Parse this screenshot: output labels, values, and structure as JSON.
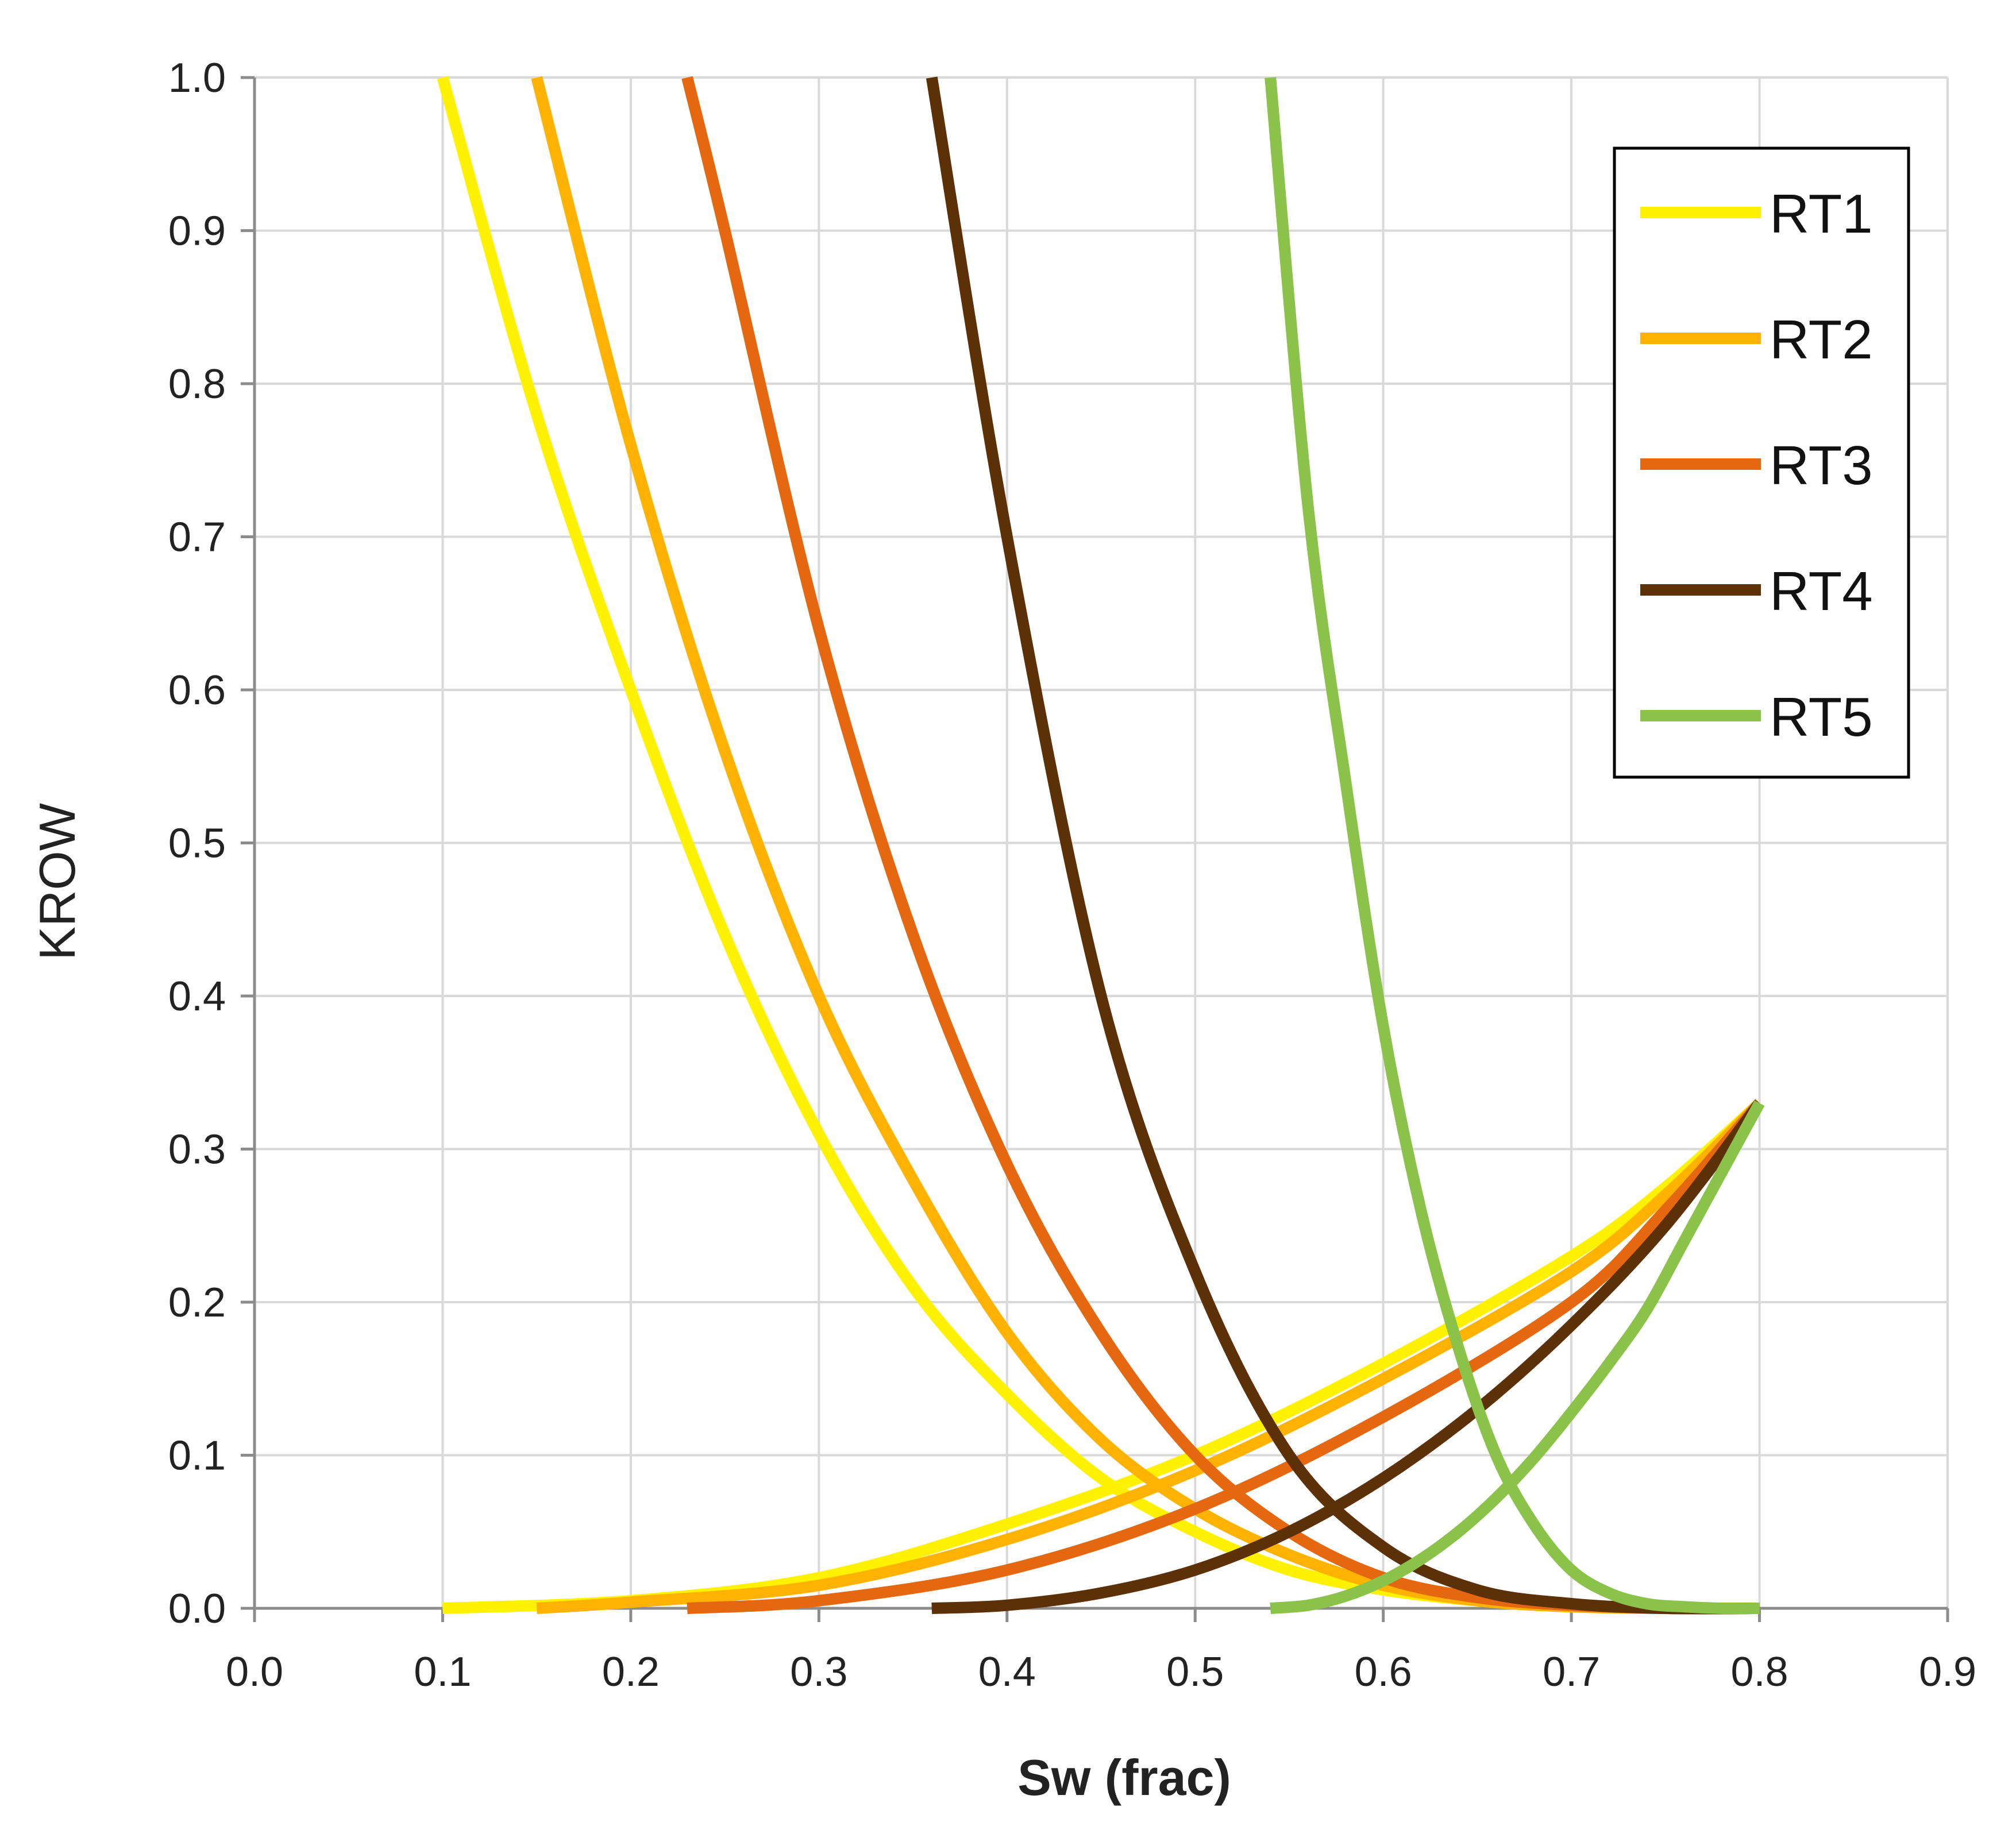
{
  "chart_data": {
    "type": "line",
    "title": "",
    "xlabel": "Sw (frac)",
    "ylabel": "KROW",
    "xlim": [
      0.0,
      0.9
    ],
    "ylim": [
      0.0,
      1.0
    ],
    "xticks": [
      "0.0",
      "0.1",
      "0.2",
      "0.3",
      "0.4",
      "0.5",
      "0.6",
      "0.7",
      "0.8",
      "0.9"
    ],
    "yticks": [
      "0.0",
      "0.1",
      "0.2",
      "0.3",
      "0.4",
      "0.5",
      "0.6",
      "0.7",
      "0.8",
      "0.9",
      "1.0"
    ],
    "grid": true,
    "legend_position": "top-right",
    "series": [
      {
        "name": "RT1",
        "color": "#FFF200",
        "krow": {
          "x": [
            0.1,
            0.15,
            0.2,
            0.25,
            0.3,
            0.35,
            0.4,
            0.45,
            0.5,
            0.55,
            0.6,
            0.65,
            0.7,
            0.75,
            0.8
          ],
          "y": [
            1.0,
            0.78,
            0.6,
            0.44,
            0.31,
            0.21,
            0.14,
            0.085,
            0.05,
            0.025,
            0.012,
            0.005,
            0.001,
            0.0,
            0.0
          ]
        },
        "krw": {
          "x": [
            0.1,
            0.2,
            0.3,
            0.4,
            0.5,
            0.6,
            0.7,
            0.75,
            0.8
          ],
          "y": [
            0.0,
            0.005,
            0.02,
            0.055,
            0.1,
            0.16,
            0.23,
            0.275,
            0.33
          ]
        }
      },
      {
        "name": "RT2",
        "color": "#FFB300",
        "krow": {
          "x": [
            0.15,
            0.2,
            0.25,
            0.3,
            0.35,
            0.4,
            0.45,
            0.5,
            0.55,
            0.6,
            0.65,
            0.7,
            0.75,
            0.8
          ],
          "y": [
            1.0,
            0.76,
            0.56,
            0.4,
            0.28,
            0.18,
            0.11,
            0.065,
            0.035,
            0.015,
            0.005,
            0.001,
            0.0,
            0.0
          ]
        },
        "krw": {
          "x": [
            0.15,
            0.2,
            0.3,
            0.4,
            0.5,
            0.6,
            0.7,
            0.75,
            0.8
          ],
          "y": [
            0.0,
            0.004,
            0.015,
            0.045,
            0.09,
            0.15,
            0.22,
            0.27,
            0.33
          ]
        }
      },
      {
        "name": "RT3",
        "color": "#E5670F",
        "krow": {
          "x": [
            0.23,
            0.25,
            0.3,
            0.35,
            0.4,
            0.45,
            0.5,
            0.55,
            0.6,
            0.65,
            0.7,
            0.75,
            0.8
          ],
          "y": [
            1.0,
            0.9,
            0.64,
            0.44,
            0.29,
            0.18,
            0.1,
            0.05,
            0.02,
            0.007,
            0.002,
            0.0,
            0.0
          ]
        },
        "krw": {
          "x": [
            0.23,
            0.3,
            0.4,
            0.5,
            0.6,
            0.7,
            0.75,
            0.8
          ],
          "y": [
            0.0,
            0.005,
            0.025,
            0.065,
            0.125,
            0.2,
            0.26,
            0.33
          ]
        }
      },
      {
        "name": "RT4",
        "color": "#5C3108",
        "krow": {
          "x": [
            0.36,
            0.4,
            0.45,
            0.5,
            0.55,
            0.6,
            0.65,
            0.7,
            0.75,
            0.8
          ],
          "y": [
            1.0,
            0.7,
            0.4,
            0.22,
            0.1,
            0.04,
            0.012,
            0.003,
            0.0,
            0.0
          ]
        },
        "krw": {
          "x": [
            0.36,
            0.4,
            0.45,
            0.5,
            0.55,
            0.6,
            0.65,
            0.7,
            0.75,
            0.8
          ],
          "y": [
            0.0,
            0.002,
            0.01,
            0.025,
            0.05,
            0.085,
            0.13,
            0.185,
            0.25,
            0.33
          ]
        }
      },
      {
        "name": "RT5",
        "color": "#8BC34A",
        "krow": {
          "x": [
            0.54,
            0.56,
            0.58,
            0.6,
            0.62,
            0.64,
            0.66,
            0.68,
            0.7,
            0.72,
            0.74,
            0.76,
            0.78,
            0.8
          ],
          "y": [
            1.0,
            0.72,
            0.54,
            0.38,
            0.26,
            0.17,
            0.1,
            0.055,
            0.025,
            0.01,
            0.003,
            0.001,
            0.0,
            0.0
          ]
        },
        "krw": {
          "x": [
            0.54,
            0.56,
            0.58,
            0.6,
            0.62,
            0.64,
            0.66,
            0.68,
            0.7,
            0.72,
            0.74,
            0.76,
            0.78,
            0.8
          ],
          "y": [
            0.0,
            0.002,
            0.008,
            0.018,
            0.032,
            0.05,
            0.072,
            0.098,
            0.128,
            0.16,
            0.195,
            0.24,
            0.285,
            0.33
          ]
        }
      }
    ]
  }
}
